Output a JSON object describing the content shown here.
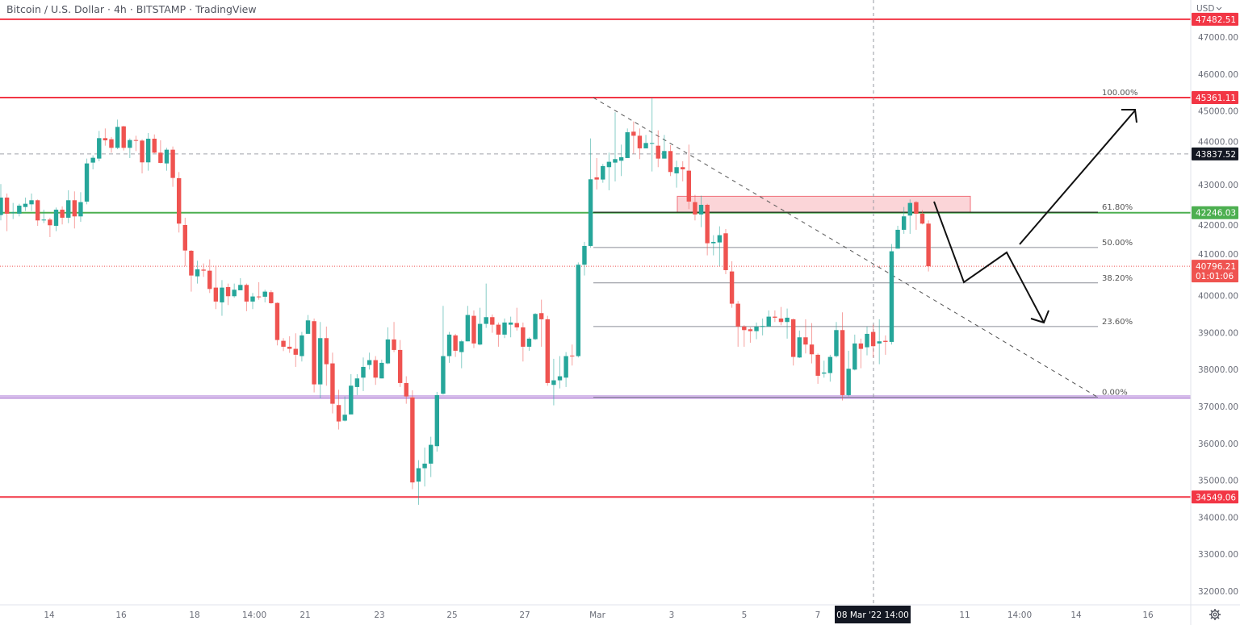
{
  "header": {
    "title": "Bitcoin / U.S. Dollar · 4h · BITSTAMP · TradingView"
  },
  "price_axis": {
    "currency": "USD",
    "currency_icon": "chevron-down-icon"
  },
  "time_axis": {
    "settings_icon": "gear-icon"
  },
  "colors": {
    "up": "#26a69a",
    "down": "#ef5350",
    "resistance": "#f23645",
    "support_green": "#4caf50",
    "support_purple": "#a66fd0",
    "fib": "#8a8d96",
    "zone_fill": "#fbd5d8",
    "arrow": "#111111"
  },
  "chart_data": {
    "type": "candlestick",
    "title": "Bitcoin / U.S. Dollar · 4h · BITSTAMP · TradingView",
    "timeframe": "4h",
    "ylim": [
      31500,
      47900
    ],
    "y_ticks": [
      "47000.00",
      "46000.00",
      "45000.00",
      "44000.00",
      "43000.00",
      "42000.00",
      "41000.00",
      "40000.00",
      "39000.00",
      "38000.00",
      "37000.00",
      "36000.00",
      "35000.00",
      "34000.00",
      "33000.00",
      "32000.00"
    ],
    "x_ticks": [
      "14",
      "16",
      "18",
      "14:00",
      "21",
      "23",
      "25",
      "27",
      "Mar",
      "3",
      "5",
      "7",
      "11",
      "14:00",
      "14",
      "16"
    ],
    "crosshair_label": "08 Mar '22  14:00",
    "grid": false,
    "candles_ohlc": [
      [
        42182,
        43020,
        42037,
        42655
      ],
      [
        42655,
        42765,
        41746,
        42219
      ],
      [
        42233,
        42510,
        42073,
        42255
      ],
      [
        42219,
        42488,
        42146,
        42437
      ],
      [
        42400,
        42655,
        42291,
        42488
      ],
      [
        42473,
        42765,
        42291,
        42583
      ],
      [
        42583,
        42605,
        41891,
        42037
      ],
      [
        42037,
        42328,
        41964,
        42059
      ],
      [
        42059,
        42110,
        41586,
        41906
      ],
      [
        41891,
        42386,
        41746,
        42328
      ],
      [
        42328,
        42415,
        41928,
        42110
      ],
      [
        42110,
        42852,
        41964,
        42583
      ],
      [
        42583,
        42823,
        41819,
        42146
      ],
      [
        42146,
        42801,
        42000,
        42532
      ],
      [
        42546,
        43711,
        42473,
        43580
      ],
      [
        43602,
        43798,
        43420,
        43733
      ],
      [
        43711,
        44460,
        43638,
        44264
      ],
      [
        44264,
        44526,
        44060,
        44205
      ],
      [
        44235,
        44293,
        43871,
        44002
      ],
      [
        44002,
        44766,
        43965,
        44569
      ],
      [
        44584,
        44598,
        43929,
        44002
      ],
      [
        44002,
        44256,
        43725,
        44213
      ],
      [
        44213,
        44329,
        43914,
        44191
      ],
      [
        44198,
        44235,
        43310,
        43609
      ],
      [
        43609,
        44402,
        43383,
        44249
      ],
      [
        44249,
        44365,
        43856,
        43871
      ],
      [
        43871,
        44205,
        43580,
        43594
      ],
      [
        43580,
        44002,
        43383,
        43951
      ],
      [
        43951,
        44038,
        42947,
        43187
      ],
      [
        43180,
        43347,
        41709,
        41950
      ],
      [
        41913,
        42110,
        40800,
        41222
      ],
      [
        41215,
        41237,
        40109,
        40545
      ],
      [
        40523,
        40945,
        40327,
        40712
      ],
      [
        40705,
        40872,
        40509,
        40676
      ],
      [
        40676,
        40982,
        40072,
        40181
      ],
      [
        40218,
        40814,
        39636,
        39840
      ],
      [
        39818,
        40421,
        39454,
        40218
      ],
      [
        40232,
        40327,
        39745,
        39985
      ],
      [
        39985,
        40327,
        39942,
        40160
      ],
      [
        40145,
        40472,
        40145,
        40290
      ],
      [
        40290,
        40327,
        39578,
        39840
      ],
      [
        39840,
        40072,
        39636,
        39978
      ],
      [
        39978,
        40363,
        39890,
        39971
      ],
      [
        39971,
        40160,
        39818,
        40109
      ],
      [
        40094,
        40145,
        39781,
        39796
      ],
      [
        39803,
        39818,
        38653,
        38799
      ],
      [
        38777,
        38850,
        38500,
        38617
      ],
      [
        38617,
        38900,
        38450,
        38560
      ],
      [
        38560,
        38981,
        38071,
        38400
      ],
      [
        38363,
        39018,
        38217,
        38923
      ],
      [
        38967,
        39476,
        38967,
        39330
      ],
      [
        39309,
        39381,
        37380,
        37598
      ],
      [
        37598,
        39287,
        37220,
        38850
      ],
      [
        38850,
        39163,
        37562,
        38144
      ],
      [
        38166,
        38457,
        36812,
        37074
      ],
      [
        37038,
        37453,
        36376,
        36594
      ],
      [
        36616,
        37271,
        36594,
        36776
      ],
      [
        36784,
        37875,
        36784,
        37562
      ],
      [
        37526,
        37875,
        37307,
        37759
      ],
      [
        37780,
        38326,
        37416,
        38071
      ],
      [
        38123,
        38457,
        37999,
        38254
      ],
      [
        38254,
        38363,
        37584,
        37780
      ],
      [
        37759,
        38268,
        37759,
        38181
      ],
      [
        38166,
        39141,
        38144,
        38814
      ],
      [
        38814,
        39287,
        38472,
        38530
      ],
      [
        38530,
        38799,
        37526,
        37635
      ],
      [
        37635,
        37817,
        37074,
        37271
      ],
      [
        37249,
        37438,
        34760,
        34943
      ],
      [
        34964,
        35546,
        34338,
        35328
      ],
      [
        35328,
        35888,
        34833,
        35452
      ],
      [
        35452,
        36180,
        35088,
        35961
      ],
      [
        35925,
        37394,
        35779,
        37307
      ],
      [
        37343,
        39723,
        37322,
        38363
      ],
      [
        38363,
        39018,
        38181,
        38945
      ],
      [
        38923,
        38967,
        38341,
        38508
      ],
      [
        38472,
        38799,
        38035,
        38763
      ],
      [
        38763,
        39723,
        38763,
        39476
      ],
      [
        39454,
        39600,
        38581,
        38705
      ],
      [
        38676,
        39672,
        38654,
        39236
      ],
      [
        39236,
        40327,
        39127,
        39418
      ],
      [
        39418,
        39490,
        38995,
        39214
      ],
      [
        39214,
        39272,
        38617,
        38945
      ],
      [
        38945,
        39381,
        38850,
        39272
      ],
      [
        39214,
        39432,
        38872,
        39272
      ],
      [
        39258,
        39672,
        39054,
        39141
      ],
      [
        39141,
        39272,
        38217,
        38617
      ],
      [
        38617,
        38872,
        38508,
        38836
      ],
      [
        38821,
        39527,
        38799,
        39505
      ],
      [
        39527,
        39891,
        38617,
        39360
      ],
      [
        39360,
        39454,
        37562,
        37635
      ],
      [
        37584,
        38290,
        37030,
        37708
      ],
      [
        37708,
        38363,
        37489,
        37817
      ],
      [
        37780,
        38472,
        37526,
        38363
      ],
      [
        38377,
        38676,
        38108,
        38363
      ],
      [
        38363,
        40900,
        38326,
        40837
      ],
      [
        40837,
        41456,
        40546,
        41346
      ],
      [
        41346,
        44257,
        41295,
        43151
      ],
      [
        43202,
        43726,
        42874,
        43144
      ],
      [
        43144,
        43566,
        43056,
        43508
      ],
      [
        43479,
        43871,
        42852,
        43624
      ],
      [
        43602,
        44963,
        43093,
        43697
      ],
      [
        43653,
        44089,
        43238,
        43748
      ],
      [
        43726,
        44526,
        43726,
        44424
      ],
      [
        44439,
        44715,
        43842,
        44330
      ],
      [
        44330,
        44526,
        43697,
        43988
      ],
      [
        43988,
        44351,
        43988,
        44133
      ],
      [
        44111,
        45361,
        43362,
        44133
      ],
      [
        44060,
        44475,
        43479,
        43711
      ],
      [
        43711,
        44351,
        43711,
        43915
      ],
      [
        43915,
        44075,
        43238,
        43347
      ],
      [
        43311,
        43653,
        42925,
        43479
      ],
      [
        43479,
        43638,
        43093,
        43420
      ],
      [
        43384,
        44089,
        42343,
        42547
      ],
      [
        42532,
        42729,
        42037,
        42198
      ],
      [
        42198,
        42707,
        41855,
        42459
      ],
      [
        42459,
        42488,
        41091,
        41419
      ],
      [
        41419,
        41637,
        41091,
        41455
      ],
      [
        41441,
        41877,
        40801,
        41637
      ],
      [
        41688,
        41804,
        40582,
        40691
      ],
      [
        40655,
        40931,
        39672,
        39782
      ],
      [
        39782,
        39854,
        38617,
        39163
      ],
      [
        39163,
        39200,
        38617,
        39068
      ],
      [
        39090,
        39141,
        38726,
        39039
      ],
      [
        39039,
        39272,
        38821,
        39163
      ],
      [
        39163,
        39381,
        38923,
        39178
      ],
      [
        39163,
        39600,
        39163,
        39432
      ],
      [
        39432,
        39600,
        39287,
        39403
      ],
      [
        39381,
        39694,
        39199,
        39287
      ],
      [
        39287,
        39651,
        38836,
        39403
      ],
      [
        39360,
        39381,
        38108,
        38341
      ],
      [
        38326,
        39054,
        38311,
        38872
      ],
      [
        38872,
        39360,
        38435,
        38676
      ],
      [
        38676,
        39257,
        38166,
        38413
      ],
      [
        38399,
        38435,
        37613,
        37831
      ],
      [
        37889,
        38239,
        37780,
        37918
      ],
      [
        37904,
        38399,
        37671,
        38341
      ],
      [
        38363,
        39287,
        38326,
        39068
      ],
      [
        39068,
        39549,
        37161,
        37307
      ],
      [
        37307,
        38508,
        37271,
        38020
      ],
      [
        37998,
        38945,
        37976,
        38705
      ],
      [
        38705,
        38836,
        38035,
        38559
      ],
      [
        38603,
        39163,
        38384,
        38966
      ],
      [
        39017,
        39214,
        38326,
        38632
      ],
      [
        38705,
        39360,
        38144,
        38763
      ],
      [
        38777,
        38923,
        38399,
        38748
      ],
      [
        38748,
        41397,
        38676,
        41201
      ],
      [
        41273,
        41892,
        41273,
        41783
      ],
      [
        41783,
        42401,
        41674,
        42147
      ],
      [
        42168,
        42605,
        41674,
        42510
      ],
      [
        42532,
        42561,
        41783,
        42219
      ],
      [
        42219,
        42314,
        41928,
        41950
      ],
      [
        41950,
        42037,
        40655,
        40796.21
      ]
    ],
    "horizontal_levels": [
      {
        "label": "47482.51",
        "price": 47482.51,
        "color": "#f23645"
      },
      {
        "label": "45361.11",
        "price": 45361.11,
        "color": "#f23645"
      },
      {
        "label": "43837.52",
        "price": 43837.52,
        "color": "#131722",
        "style": "dashed"
      },
      {
        "label": "42246.03",
        "price": 42246.03,
        "color": "#4caf50"
      },
      {
        "label": "34549.06",
        "price": 34549.06,
        "color": "#f23645"
      }
    ],
    "purple_support": 37250,
    "last_price": {
      "label": "40796.21",
      "price": 40796.21,
      "countdown": "01:01:06"
    },
    "fibonacci": [
      {
        "label": "100.00%",
        "price": 45361.11
      },
      {
        "label": "61.80%",
        "price": 42259
      },
      {
        "label": "50.00%",
        "price": 41304
      },
      {
        "label": "38.20%",
        "price": 40346
      },
      {
        "label": "23.60%",
        "price": 39163
      },
      {
        "label": "0.00%",
        "price": 37247
      }
    ],
    "supply_zone": {
      "price_low": 42246,
      "price_high": 42690
    },
    "trendline": {
      "from_price": 45361,
      "to_price": 37247,
      "style": "dashed"
    }
  }
}
